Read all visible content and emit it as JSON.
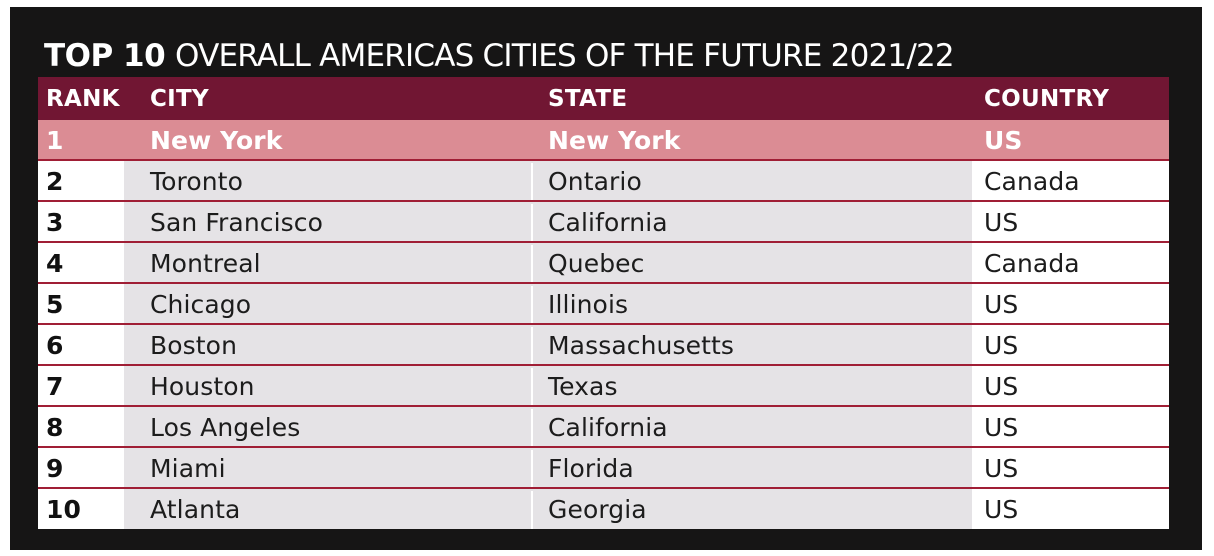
{
  "title": {
    "bold_part": "TOP 10",
    "light_part": "OVERALL AMERICAS CITIES OF THE FUTURE 2021/22"
  },
  "colors": {
    "header_bg": "#711633",
    "highlight_row_bg": "#db8c94",
    "row_rule": "#a01e35",
    "body_bg": "#e5e3e6",
    "frame_bg": "#161515"
  },
  "table": {
    "columns": [
      "RANK",
      "CITY",
      "STATE",
      "COUNTRY"
    ],
    "rows": [
      {
        "rank": "1",
        "city": "New York",
        "state": "New York",
        "country": "US"
      },
      {
        "rank": "2",
        "city": "Toronto",
        "state": "Ontario",
        "country": "Canada"
      },
      {
        "rank": "3",
        "city": "San Francisco",
        "state": "California",
        "country": "US"
      },
      {
        "rank": "4",
        "city": "Montreal",
        "state": "Quebec",
        "country": "Canada"
      },
      {
        "rank": "5",
        "city": "Chicago",
        "state": "Illinois",
        "country": "US"
      },
      {
        "rank": "6",
        "city": "Boston",
        "state": "Massachusetts",
        "country": "US"
      },
      {
        "rank": "7",
        "city": "Houston",
        "state": "Texas",
        "country": "US"
      },
      {
        "rank": "8",
        "city": "Los Angeles",
        "state": "California",
        "country": "US"
      },
      {
        "rank": "9",
        "city": "Miami",
        "state": "Florida",
        "country": "US"
      },
      {
        "rank": "10",
        "city": "Atlanta",
        "state": "Georgia",
        "country": "US"
      }
    ]
  }
}
